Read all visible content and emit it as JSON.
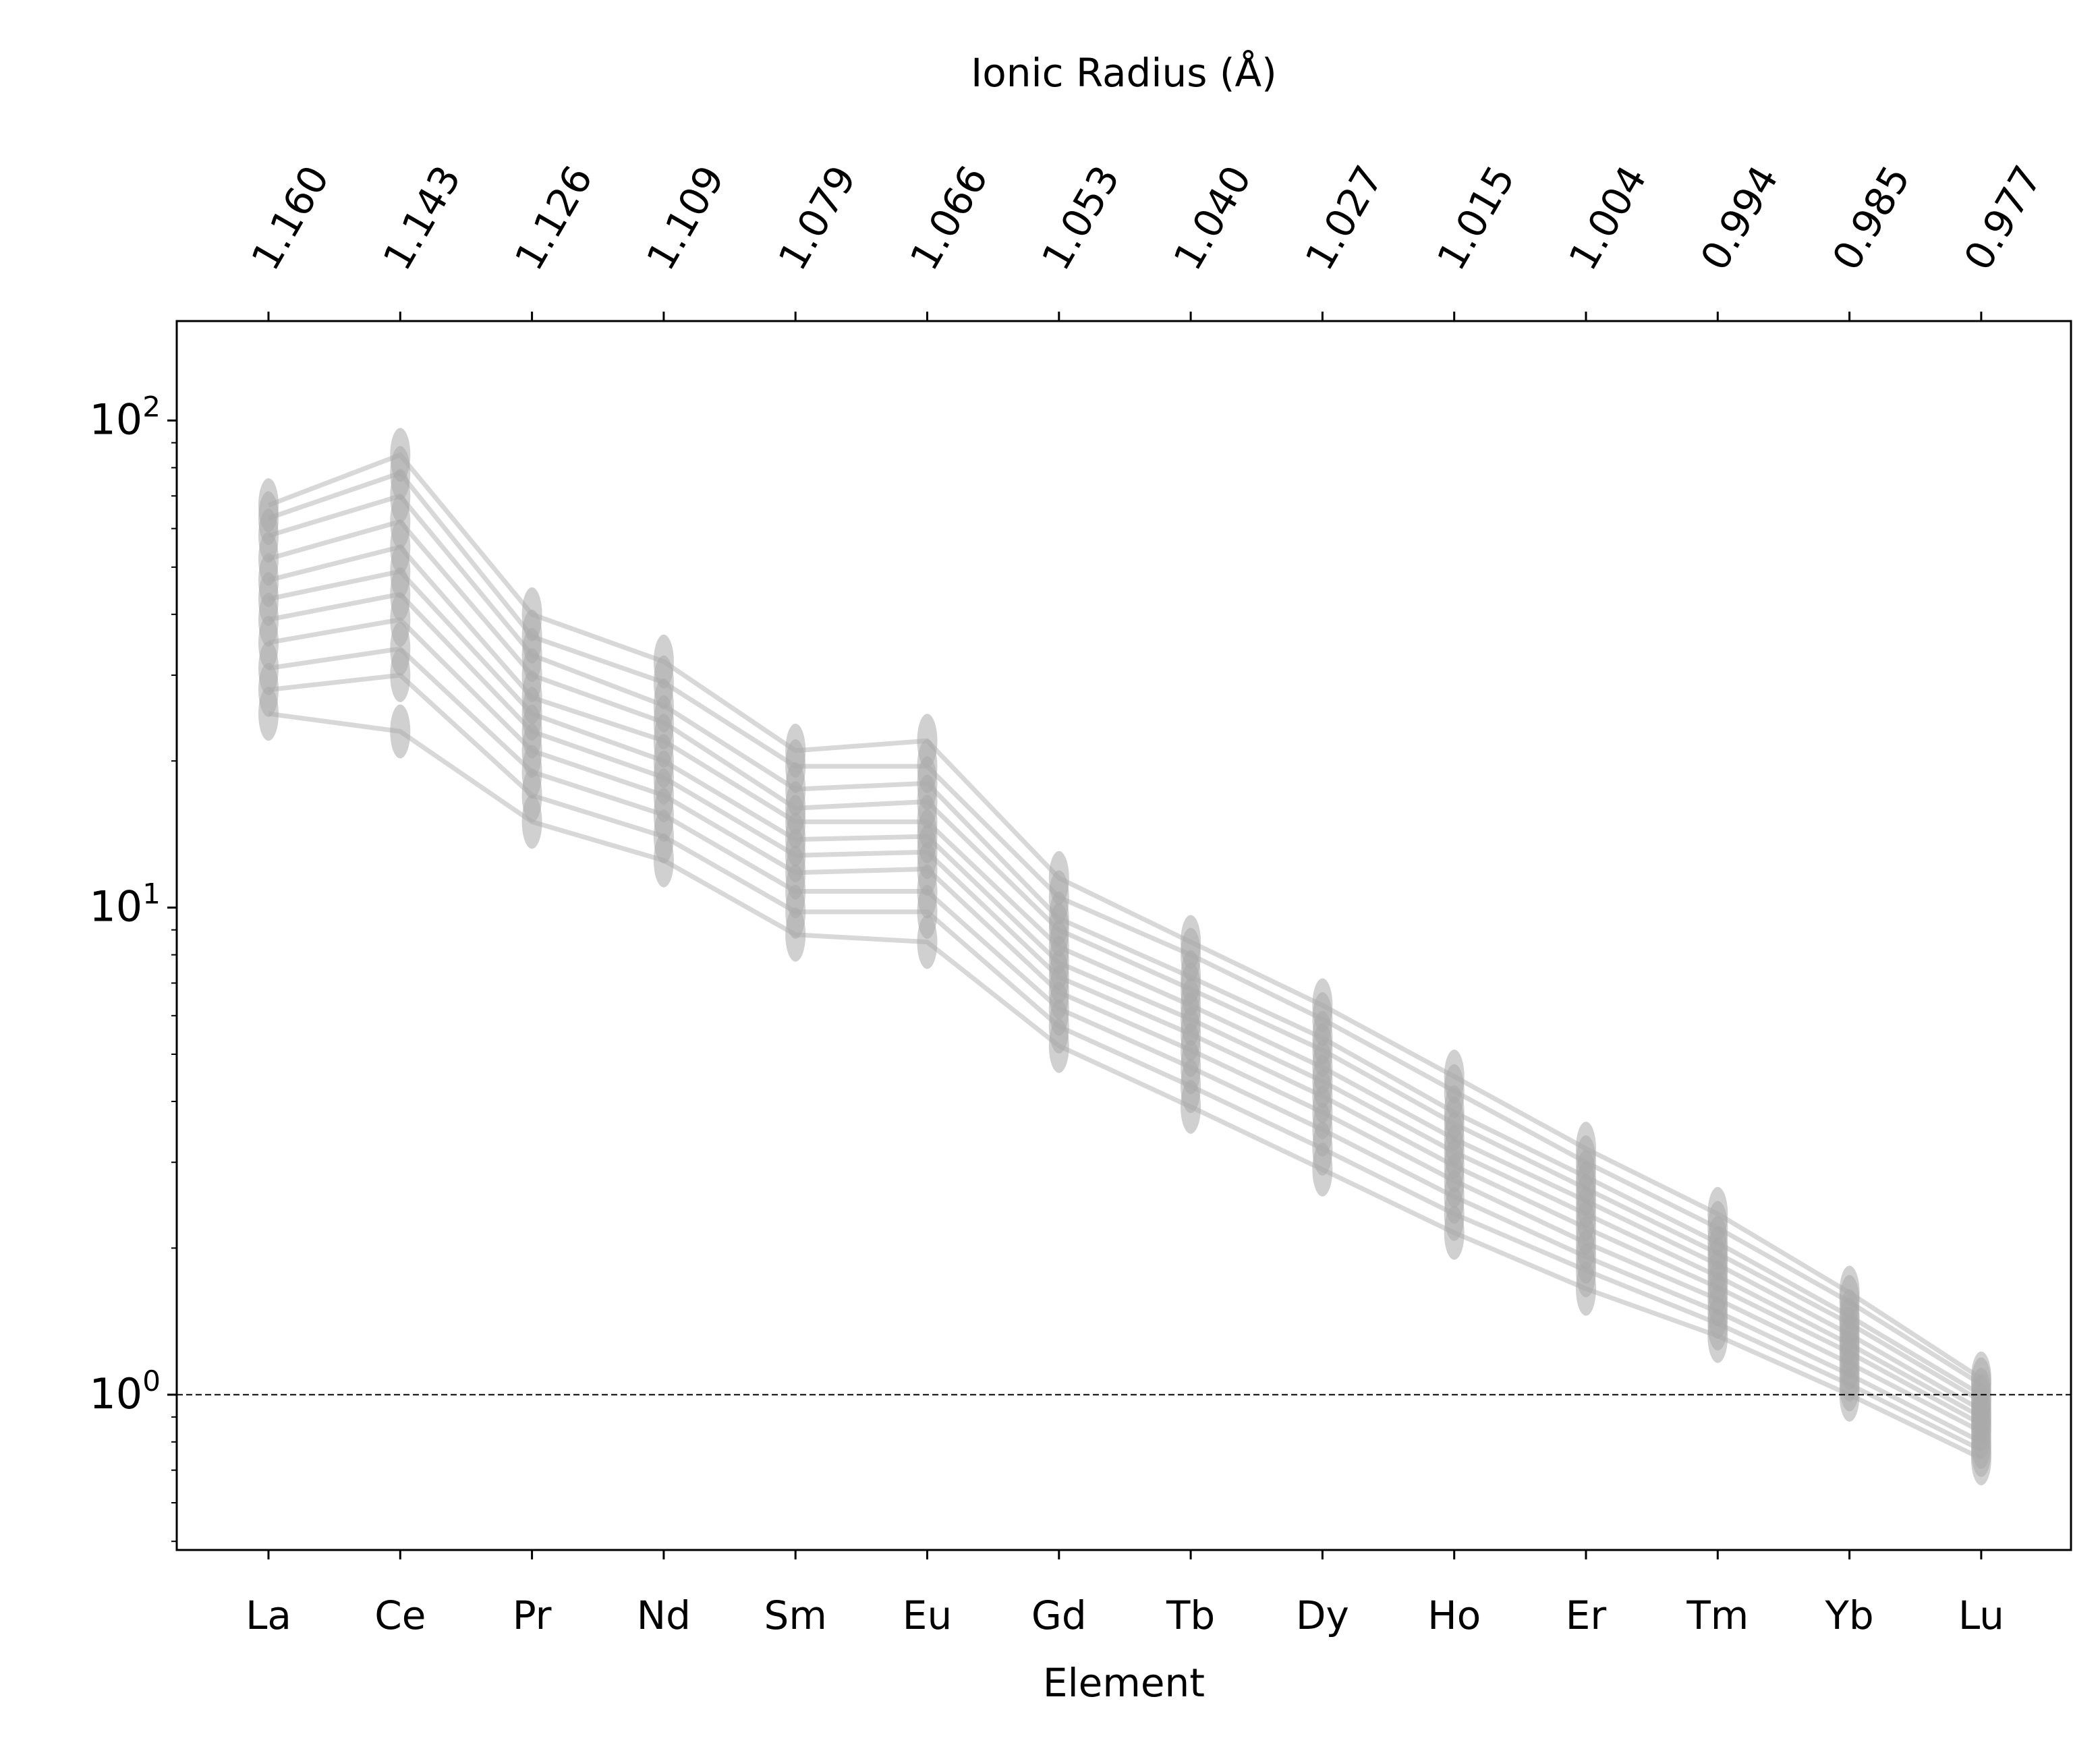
{
  "chart_data": {
    "type": "line",
    "title": "",
    "xlabel": "Element",
    "ylabel": "",
    "top_axis_label": "Ionic Radius (Å)",
    "yscale": "log",
    "ylim": [
      0.48,
      160
    ],
    "categories": [
      "La",
      "Ce",
      "Pr",
      "Nd",
      "Sm",
      "Eu",
      "Gd",
      "Tb",
      "Dy",
      "Ho",
      "Er",
      "Tm",
      "Yb",
      "Lu"
    ],
    "ionic_radius": [
      "1.160",
      "1.143",
      "1.126",
      "1.109",
      "1.079",
      "1.066",
      "1.053",
      "1.040",
      "1.027",
      "1.015",
      "1.004",
      "0.994",
      "0.985",
      "0.977"
    ],
    "y_ticks": [
      {
        "base": "10",
        "exp": "0",
        "value": 1
      },
      {
        "base": "10",
        "exp": "1",
        "value": 10
      },
      {
        "base": "10",
        "exp": "2",
        "value": 100
      }
    ],
    "reference_line": {
      "y": 1,
      "style": "dashed"
    },
    "grid": false,
    "series_color": "#a9a9a9",
    "series": [
      {
        "values": [
          63,
          78,
          36,
          29,
          19.5,
          19.5,
          10.5,
          8.0,
          5.9,
          4.2,
          3.0,
          2.2,
          1.55,
          1.05
        ]
      },
      {
        "values": [
          58,
          70,
          33,
          26,
          17.5,
          18.0,
          9.5,
          7.2,
          5.4,
          3.8,
          2.8,
          2.05,
          1.45,
          1.0
        ]
      },
      {
        "values": [
          52,
          62,
          30,
          24,
          16.0,
          16.5,
          9.0,
          6.8,
          5.1,
          3.6,
          2.65,
          1.95,
          1.4,
          0.97
        ]
      },
      {
        "values": [
          47,
          55,
          27,
          22,
          15.0,
          15.0,
          8.3,
          6.3,
          4.7,
          3.35,
          2.5,
          1.85,
          1.33,
          0.93
        ]
      },
      {
        "values": [
          43,
          49,
          25,
          20,
          13.8,
          14.0,
          7.7,
          5.9,
          4.4,
          3.15,
          2.35,
          1.75,
          1.27,
          0.9
        ]
      },
      {
        "values": [
          39,
          44,
          23,
          18.5,
          12.8,
          13.0,
          7.2,
          5.5,
          4.1,
          2.95,
          2.2,
          1.66,
          1.22,
          0.87
        ]
      },
      {
        "values": [
          35,
          39,
          21,
          17,
          11.8,
          12.0,
          6.7,
          5.1,
          3.8,
          2.75,
          2.05,
          1.57,
          1.16,
          0.84
        ]
      },
      {
        "values": [
          31,
          34,
          19,
          15.5,
          10.8,
          10.8,
          6.2,
          4.7,
          3.5,
          2.55,
          1.92,
          1.48,
          1.1,
          0.8
        ]
      },
      {
        "values": [
          28,
          30,
          17,
          14,
          9.8,
          9.8,
          5.7,
          4.3,
          3.2,
          2.35,
          1.8,
          1.4,
          1.05,
          0.77
        ]
      },
      {
        "values": [
          67,
          85,
          40,
          32,
          21,
          22,
          11.5,
          8.5,
          6.3,
          4.5,
          3.2,
          2.35,
          1.62,
          1.08
        ]
      },
      {
        "values": [
          25,
          23,
          15,
          12.5,
          8.8,
          8.5,
          5.2,
          3.9,
          2.9,
          2.15,
          1.65,
          1.32,
          1.0,
          0.74
        ]
      }
    ]
  }
}
